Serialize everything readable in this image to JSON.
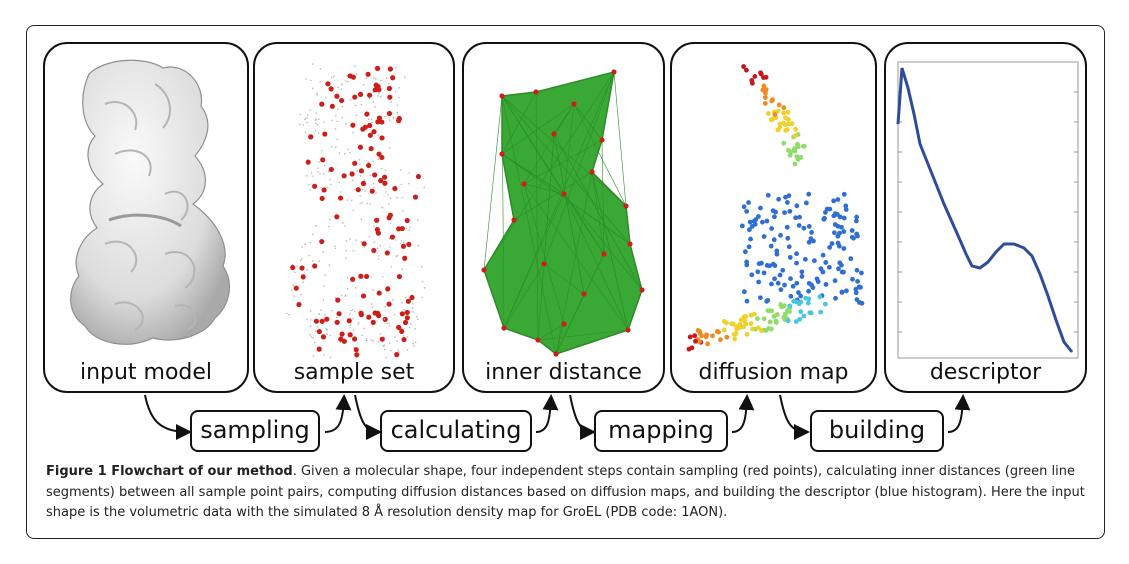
{
  "panels": [
    {
      "id": "input-model",
      "label": "input model"
    },
    {
      "id": "sample-set",
      "label": "sample set"
    },
    {
      "id": "inner-distance",
      "label": "inner distance"
    },
    {
      "id": "diffusion-map",
      "label": "diffusion map"
    },
    {
      "id": "descriptor",
      "label": "descriptor"
    }
  ],
  "steps": [
    {
      "id": "sampling",
      "label": "sampling"
    },
    {
      "id": "calculating",
      "label": "calculating"
    },
    {
      "id": "mapping",
      "label": "mapping"
    },
    {
      "id": "building",
      "label": "building"
    }
  ],
  "caption": {
    "title": "Figure 1 Flowchart of our method",
    "body": ". Given a molecular shape, four independent steps contain sampling (red points), calculating inner distances (green line segments) between all sample point pairs, computing diffusion distances based on diffusion maps, and building the descriptor (blue histogram). Here the input shape is the volumetric data with the simulated 8 Å resolution density map for GroEL (PDB code: 1AON)."
  },
  "colors": {
    "sample_points": "#cc1f1a",
    "inner_distance_lines": "#3aa835",
    "descriptor_curve": "#2f4c9a",
    "surface": "#e4e4e4"
  }
}
